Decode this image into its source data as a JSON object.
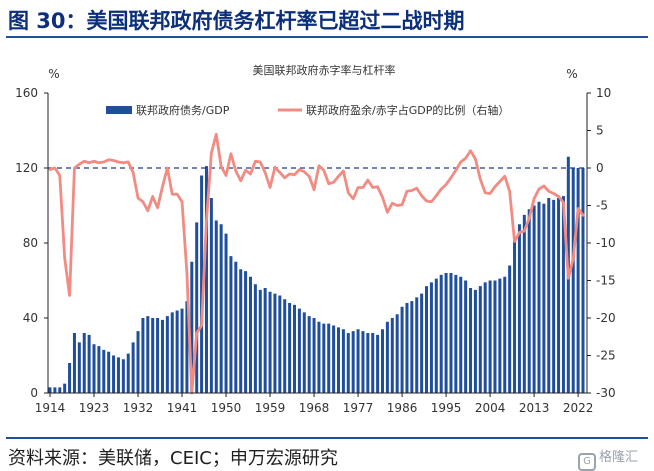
{
  "figure": {
    "title": "图 30：美国联邦政府债务杠杆率已超过二战时期",
    "source": "资料来源：美联储，CEIC；申万宏源研究",
    "watermark": "格隆汇",
    "watermark_icon": "G"
  },
  "chart_data": {
    "type": "bar+line",
    "title": "美国联邦政府赤字率与杠杆率",
    "left_unit": "%",
    "right_unit": "%",
    "y_left": {
      "min": 0,
      "max": 160,
      "ticks": [
        0,
        40,
        80,
        120,
        160
      ]
    },
    "y_right": {
      "min": -30,
      "max": 10,
      "ticks": [
        -30,
        -25,
        -20,
        -15,
        -10,
        -5,
        0,
        5,
        10
      ]
    },
    "x_ticks": [
      "1914",
      "1923",
      "1932",
      "1941",
      "1950",
      "1959",
      "1968",
      "1977",
      "1986",
      "1995",
      "2004",
      "2013",
      "2022"
    ],
    "x_range": [
      1914,
      2023
    ],
    "zero_line_right": 0,
    "colors": {
      "bar": "#1f4e9c",
      "line": "#f28b82",
      "axis": "#222222",
      "zero_line": "#1f3f88"
    },
    "legend": {
      "placement": "top",
      "bar_label": "联邦政府债务/GDP",
      "line_label": "联邦政府盈余/赤字占GDP的比例（右轴）"
    },
    "series": [
      {
        "name": "联邦政府债务/GDP",
        "axis": "left",
        "kind": "bar",
        "years": [
          1914,
          1915,
          1916,
          1917,
          1918,
          1919,
          1920,
          1921,
          1922,
          1923,
          1924,
          1925,
          1926,
          1927,
          1928,
          1929,
          1930,
          1931,
          1932,
          1933,
          1934,
          1935,
          1936,
          1937,
          1938,
          1939,
          1940,
          1941,
          1942,
          1943,
          1944,
          1945,
          1946,
          1947,
          1948,
          1949,
          1950,
          1951,
          1952,
          1953,
          1954,
          1955,
          1956,
          1957,
          1958,
          1959,
          1960,
          1961,
          1962,
          1963,
          1964,
          1965,
          1966,
          1967,
          1968,
          1969,
          1970,
          1971,
          1972,
          1973,
          1974,
          1975,
          1976,
          1977,
          1978,
          1979,
          1980,
          1981,
          1982,
          1983,
          1984,
          1985,
          1986,
          1987,
          1988,
          1989,
          1990,
          1991,
          1992,
          1993,
          1994,
          1995,
          1996,
          1997,
          1998,
          1999,
          2000,
          2001,
          2002,
          2003,
          2004,
          2005,
          2006,
          2007,
          2008,
          2009,
          2010,
          2011,
          2012,
          2013,
          2014,
          2015,
          2016,
          2017,
          2018,
          2019,
          2020,
          2021,
          2022,
          2023
        ],
        "values": [
          3,
          3,
          3,
          5,
          16,
          32,
          27,
          32,
          31,
          26,
          25,
          23,
          22,
          20,
          19,
          18,
          21,
          27,
          33,
          40,
          41,
          40,
          40,
          39,
          41,
          43,
          44,
          45,
          49,
          70,
          91,
          116,
          121,
          104,
          92,
          90,
          85,
          73,
          70,
          66,
          65,
          62,
          58,
          55,
          56,
          54,
          53,
          52,
          50,
          48,
          47,
          45,
          43,
          41,
          40,
          38,
          37,
          37,
          36,
          35,
          34,
          32,
          33,
          34,
          33,
          32,
          32,
          31,
          34,
          38,
          40,
          42,
          46,
          48,
          49,
          51,
          53,
          57,
          59,
          61,
          63,
          64,
          64,
          63,
          62,
          60,
          56,
          55,
          57,
          59,
          60,
          60,
          61,
          62,
          68,
          82,
          90,
          95,
          98,
          100,
          102,
          101,
          104,
          103,
          104,
          105,
          126,
          120,
          120,
          120
        ]
      },
      {
        "name": "联邦政府盈余/赤字占GDP的比例（右轴）",
        "axis": "right",
        "kind": "line",
        "years": [
          1914,
          1915,
          1916,
          1917,
          1918,
          1919,
          1920,
          1921,
          1922,
          1923,
          1924,
          1925,
          1926,
          1927,
          1928,
          1929,
          1930,
          1931,
          1932,
          1933,
          1934,
          1935,
          1936,
          1937,
          1938,
          1939,
          1940,
          1941,
          1942,
          1943,
          1944,
          1945,
          1946,
          1947,
          1948,
          1949,
          1950,
          1951,
          1952,
          1953,
          1954,
          1955,
          1956,
          1957,
          1958,
          1959,
          1960,
          1961,
          1962,
          1963,
          1964,
          1965,
          1966,
          1967,
          1968,
          1969,
          1970,
          1971,
          1972,
          1973,
          1974,
          1975,
          1976,
          1977,
          1978,
          1979,
          1980,
          1981,
          1982,
          1983,
          1984,
          1985,
          1986,
          1987,
          1988,
          1989,
          1990,
          1991,
          1992,
          1993,
          1994,
          1995,
          1996,
          1997,
          1998,
          1999,
          2000,
          2001,
          2002,
          2003,
          2004,
          2005,
          2006,
          2007,
          2008,
          2009,
          2010,
          2011,
          2012,
          2013,
          2014,
          2015,
          2016,
          2017,
          2018,
          2019,
          2020,
          2021,
          2022,
          2023
        ],
        "values": [
          -0.2,
          0,
          -1,
          -12,
          -17,
          0,
          0.5,
          0.9,
          0.7,
          0.9,
          0.7,
          0.8,
          1.1,
          1,
          0.8,
          0.7,
          0.8,
          -0.6,
          -4,
          -4.5,
          -5.7,
          -3.8,
          -5.3,
          -2.5,
          0,
          -3.5,
          -3.5,
          -4.5,
          -14,
          -30,
          -22,
          -21,
          -7,
          2,
          4.5,
          0.2,
          -1,
          1.9,
          -0.4,
          -1.7,
          -0.3,
          -0.8,
          0.9,
          0.8,
          -0.6,
          -2.6,
          0.1,
          -0.6,
          -1.3,
          -0.8,
          -0.9,
          -0.2,
          -0.5,
          -1.1,
          -2.9,
          0.3,
          -0.3,
          -2.1,
          -1.9,
          -1.1,
          -0.4,
          -3.3,
          -4.1,
          -2.6,
          -2.6,
          -1.6,
          -2.6,
          -2.5,
          -3.9,
          -5.9,
          -4.7,
          -5,
          -4.9,
          -3.1,
          -3,
          -2.7,
          -3.7,
          -4.4,
          -4.5,
          -3.7,
          -2.8,
          -2.2,
          -1.3,
          -0.3,
          0.8,
          1.3,
          2.3,
          1.2,
          -1.5,
          -3.3,
          -3.4,
          -2.5,
          -1.8,
          -1.1,
          -3.1,
          -9.8,
          -8.6,
          -8.4,
          -6.7,
          -4.1,
          -2.8,
          -2.4,
          -3.1,
          -3.4,
          -3.8,
          -4.6,
          -14.7,
          -12.1,
          -5.4,
          -6.3
        ]
      }
    ]
  }
}
